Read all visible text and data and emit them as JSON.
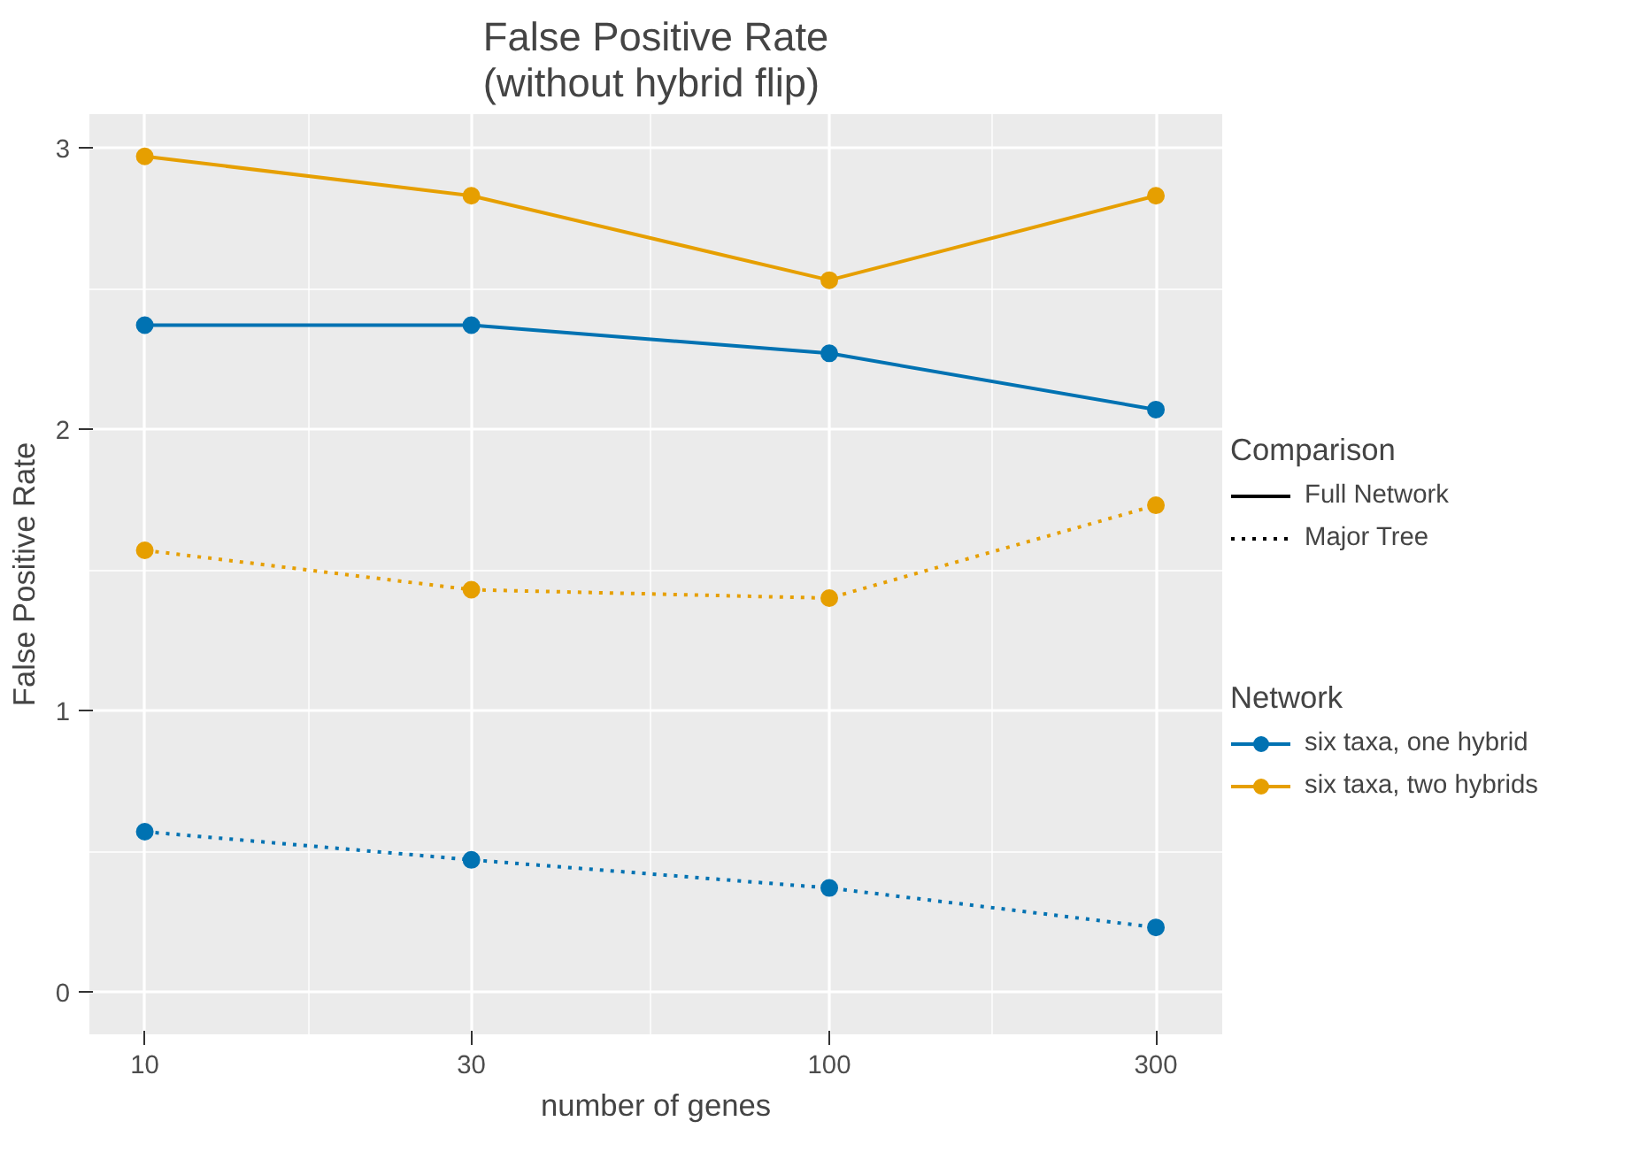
{
  "chart_data": {
    "type": "line",
    "title": "False Positive Rate\n(without hybrid flip)",
    "xlabel": "number of genes",
    "ylabel": "False Positive Rate",
    "x": [
      10,
      30,
      100,
      300
    ],
    "log": "x",
    "xlim": [
      8.3,
      375
    ],
    "xticks": [
      10,
      30,
      100,
      300
    ],
    "ylim": [
      -0.15,
      3.12
    ],
    "yticks": [
      0,
      1,
      2,
      3
    ],
    "grid": true,
    "marker": "circle",
    "legend": "right",
    "legend_title": [
      "Comparison",
      "Network"
    ],
    "annotations": [
      "Full Network",
      "Major Tree"
    ],
    "series": [
      {
        "name": "six taxa, one hybrid",
        "color": "#0072b2",
        "line_style": "solid",
        "values": [
          2.37,
          2.37,
          2.27,
          2.07
        ]
      },
      {
        "name": "six taxa, two hybrids",
        "color": "#e69f00",
        "line_style": "solid",
        "values": [
          2.97,
          2.83,
          2.53,
          2.83
        ]
      },
      {
        "color": "#e69f00",
        "line_style": "dotted",
        "values": [
          1.57,
          1.43,
          1.4,
          1.73
        ]
      },
      {
        "color": "#0072b2",
        "line_style": "dotted",
        "values": [
          0.57,
          0.47,
          0.37,
          0.23
        ]
      }
    ]
  }
}
